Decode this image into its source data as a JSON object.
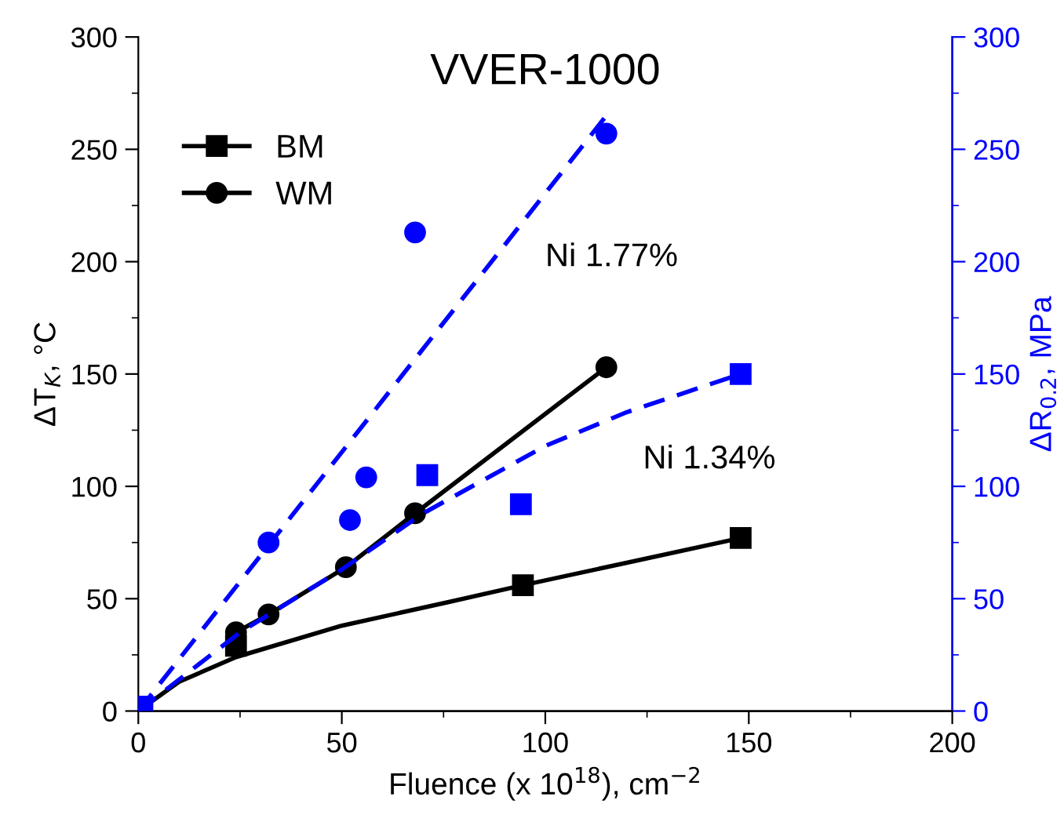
{
  "chart_data": {
    "type": "scatter",
    "title": "VVER-1000",
    "xlabel": "Fluence (x 10$^{18}$), cm$^{−2}$",
    "ylabel": "ΔT$_{K}$, °C",
    "y2label": "ΔR$_{0.2}$, MPa",
    "annotations": [
      "Ni 1.77%",
      "Ni 1.34%"
    ],
    "xlim": [
      0,
      200
    ],
    "xticks": [
      0,
      {
        "value": 25,
        "label": null
      },
      50,
      {
        "value": 75,
        "label": null
      },
      100,
      {
        "value": 125,
        "label": null
      },
      150,
      {
        "value": 175,
        "label": null
      },
      200
    ],
    "ylim": [
      0,
      300
    ],
    "yticks": [
      0,
      {
        "value": 25,
        "label": null
      },
      50,
      {
        "value": 75,
        "label": null
      },
      100,
      {
        "value": 125,
        "label": null
      },
      150,
      {
        "value": 175,
        "label": null
      },
      200,
      {
        "value": 225,
        "label": null
      },
      250,
      {
        "value": 275,
        "label": null
      },
      300
    ],
    "y2lim": [
      0,
      300
    ],
    "y2ticks": [
      0,
      {
        "value": 25,
        "label": null
      },
      50,
      {
        "value": 75,
        "label": null
      },
      100,
      {
        "value": 125,
        "label": null
      },
      150,
      {
        "value": 175,
        "label": null
      },
      200,
      {
        "value": 225,
        "label": null
      },
      250,
      {
        "value": 275,
        "label": null
      },
      300
    ],
    "grid": false,
    "legend": "top left",
    "series": [
      {
        "type": "line",
        "color": "#000000",
        "marker": "none",
        "line_style": "solid",
        "x": [
          0,
          10,
          24,
          50,
          75,
          94.5,
          120,
          148
        ],
        "values": [
          0,
          13,
          24,
          38,
          48,
          56,
          66,
          77
        ]
      },
      {
        "name": "BM",
        "color": "#000000",
        "marker": "square",
        "x": [
          24,
          94.5,
          148
        ],
        "values": [
          29,
          56,
          77
        ]
      },
      {
        "name": "WM",
        "type": "line",
        "color": "#000000",
        "marker": "circle",
        "line_style": "solid",
        "x": [
          24,
          32,
          51,
          68,
          115
        ],
        "values": [
          35,
          43,
          64,
          88,
          153
        ]
      },
      {
        "type": "line",
        "axis": "y2",
        "color": "#0000ff",
        "marker": "none",
        "line_style": "dashed",
        "x": [
          0,
          115
        ],
        "values": [
          0,
          265
        ]
      },
      {
        "type": "line",
        "axis": "y2",
        "color": "#0000ff",
        "marker": "none",
        "line_style": "dashed",
        "x": [
          0,
          25,
          50,
          70,
          100,
          120,
          148
        ],
        "values": [
          0,
          35,
          63,
          88,
          118,
          133,
          150
        ]
      },
      {
        "axis": "y2",
        "color": "#0000ff",
        "marker": "circle",
        "x": [
          32,
          52,
          56,
          68,
          115
        ],
        "values": [
          75,
          85,
          104,
          213,
          257
        ]
      },
      {
        "axis": "y2",
        "color": "#0000ff",
        "marker": "square",
        "x": [
          1,
          71,
          94,
          148
        ],
        "values": [
          2,
          105,
          92,
          150
        ]
      }
    ]
  }
}
